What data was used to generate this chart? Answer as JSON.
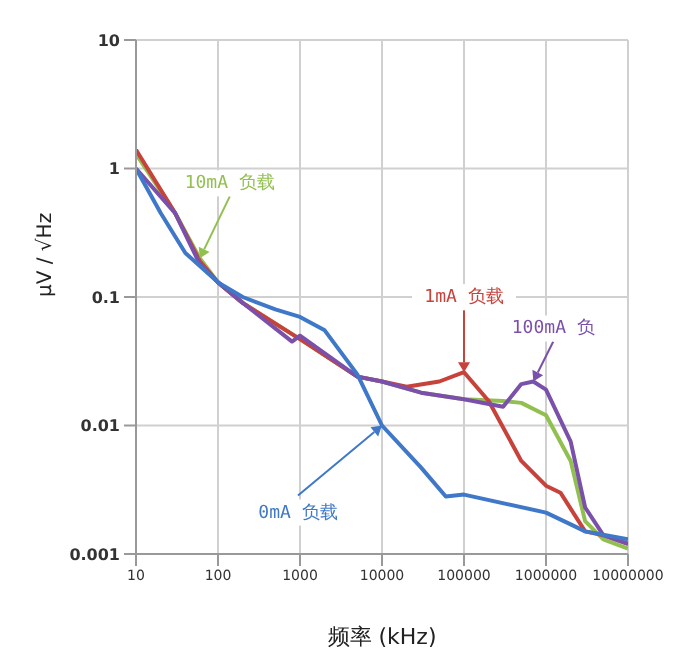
{
  "chart_data": {
    "type": "line",
    "xlabel": "频率 (kHz)",
    "ylabel": "μV / √Hz",
    "log": "xy",
    "grid": true,
    "legend": false,
    "marker": "none",
    "line_style": "solid",
    "xlim": [
      10,
      10000000
    ],
    "xticks": [
      10,
      100,
      1000,
      10000,
      100000,
      1000000,
      10000000
    ],
    "ylim": [
      0.001,
      10
    ],
    "yticks": [
      0.001,
      0.01,
      0.1,
      1,
      10
    ],
    "series": [
      {
        "color": "#92c050",
        "x": [
          10,
          30,
          60,
          100,
          200,
          1000,
          5000,
          10000,
          30000,
          100000,
          300000,
          500000,
          1000000,
          2000000,
          3000000,
          5000000,
          10000000
        ],
        "values": [
          1.3,
          0.45,
          0.2,
          0.13,
          0.09,
          0.047,
          0.024,
          0.022,
          0.018,
          0.016,
          0.0155,
          0.015,
          0.012,
          0.0053,
          0.0018,
          0.0013,
          0.0011
        ]
      },
      {
        "color": "#c8423c",
        "x": [
          10,
          30,
          60,
          100,
          200,
          1000,
          5000,
          10000,
          20000,
          50000,
          100000,
          200000,
          500000,
          1000000,
          1500000,
          3000000,
          5000000,
          10000000
        ],
        "values": [
          1.4,
          0.45,
          0.19,
          0.13,
          0.09,
          0.047,
          0.024,
          0.022,
          0.02,
          0.022,
          0.026,
          0.0155,
          0.0053,
          0.0034,
          0.003,
          0.0015,
          0.0014,
          0.0012
        ]
      },
      {
        "color": "#7b50aa",
        "x": [
          10,
          30,
          60,
          100,
          200,
          800,
          1000,
          5000,
          10000,
          30000,
          100000,
          300000,
          500000,
          700000,
          1000000,
          2000000,
          3000000,
          5000000,
          10000000
        ],
        "values": [
          1.0,
          0.45,
          0.18,
          0.13,
          0.09,
          0.045,
          0.05,
          0.024,
          0.022,
          0.018,
          0.016,
          0.014,
          0.021,
          0.022,
          0.019,
          0.0075,
          0.0023,
          0.0014,
          0.0012
        ]
      },
      {
        "color": "#3f78c8",
        "x": [
          10,
          20,
          40,
          100,
          200,
          500,
          1000,
          2000,
          5000,
          10000,
          30000,
          60000,
          100000,
          1000000,
          2000000,
          3000000,
          10000000
        ],
        "values": [
          1.0,
          0.45,
          0.22,
          0.13,
          0.1,
          0.08,
          0.07,
          0.055,
          0.025,
          0.01,
          0.0047,
          0.0028,
          0.0029,
          0.0021,
          0.0017,
          0.0015,
          0.0013
        ]
      }
    ],
    "annotations": [
      {
        "text": "10mA 负载",
        "x": 60,
        "y": 0.2
      },
      {
        "text": "1mA 负载",
        "x": 100000,
        "y": 0.026
      },
      {
        "text": "100mA 负",
        "x": 700000,
        "y": 0.022
      },
      {
        "text": "0mA 负载",
        "x": 10000,
        "y": 0.01
      }
    ]
  }
}
